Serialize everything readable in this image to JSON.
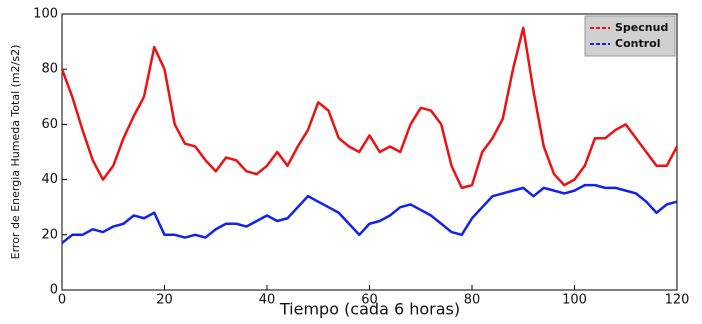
{
  "chart_data": {
    "type": "line",
    "xlabel": "Tiempo (cada 6 horas)",
    "ylabel": "Error de Energia Humeda Total (m2/s2)",
    "x": [
      0,
      2,
      4,
      6,
      8,
      10,
      12,
      14,
      16,
      18,
      20,
      22,
      24,
      26,
      28,
      30,
      32,
      34,
      36,
      38,
      40,
      42,
      44,
      46,
      48,
      50,
      52,
      54,
      56,
      58,
      60,
      62,
      64,
      66,
      68,
      70,
      72,
      74,
      76,
      78,
      80,
      82,
      84,
      86,
      88,
      90,
      92,
      94,
      96,
      98,
      100,
      102,
      104,
      106,
      108,
      110,
      112,
      114,
      116,
      118,
      120
    ],
    "series": [
      {
        "name": "Specnud",
        "color": "#ee1111",
        "values": [
          80,
          70,
          58,
          47,
          40,
          45,
          55,
          63,
          70,
          88,
          80,
          60,
          53,
          52,
          47,
          43,
          48,
          47,
          43,
          42,
          45,
          50,
          45,
          52,
          58,
          68,
          65,
          55,
          52,
          50,
          56,
          50,
          52,
          50,
          60,
          66,
          65,
          60,
          45,
          37,
          38,
          50,
          55,
          62,
          80,
          95,
          72,
          52,
          42,
          38,
          40,
          45,
          55,
          55,
          58,
          60,
          55,
          50,
          45,
          45,
          52
        ]
      },
      {
        "name": "Control",
        "color": "#1122ee",
        "values": [
          17,
          20,
          20,
          22,
          21,
          23,
          24,
          27,
          26,
          28,
          20,
          20,
          19,
          20,
          19,
          22,
          24,
          24,
          23,
          25,
          27,
          25,
          26,
          30,
          34,
          32,
          30,
          28,
          24,
          20,
          24,
          25,
          27,
          30,
          31,
          29,
          27,
          24,
          21,
          20,
          26,
          30,
          34,
          35,
          36,
          37,
          34,
          37,
          36,
          35,
          36,
          38,
          38,
          37,
          37,
          36,
          35,
          32,
          28,
          31,
          32
        ]
      }
    ],
    "xlim": [
      0,
      120
    ],
    "xticks": [
      0,
      20,
      40,
      60,
      80,
      100,
      120
    ],
    "ylim": [
      0,
      100
    ],
    "yticks": [
      0,
      20,
      40,
      60,
      80,
      100
    ],
    "legend": "upper right"
  }
}
